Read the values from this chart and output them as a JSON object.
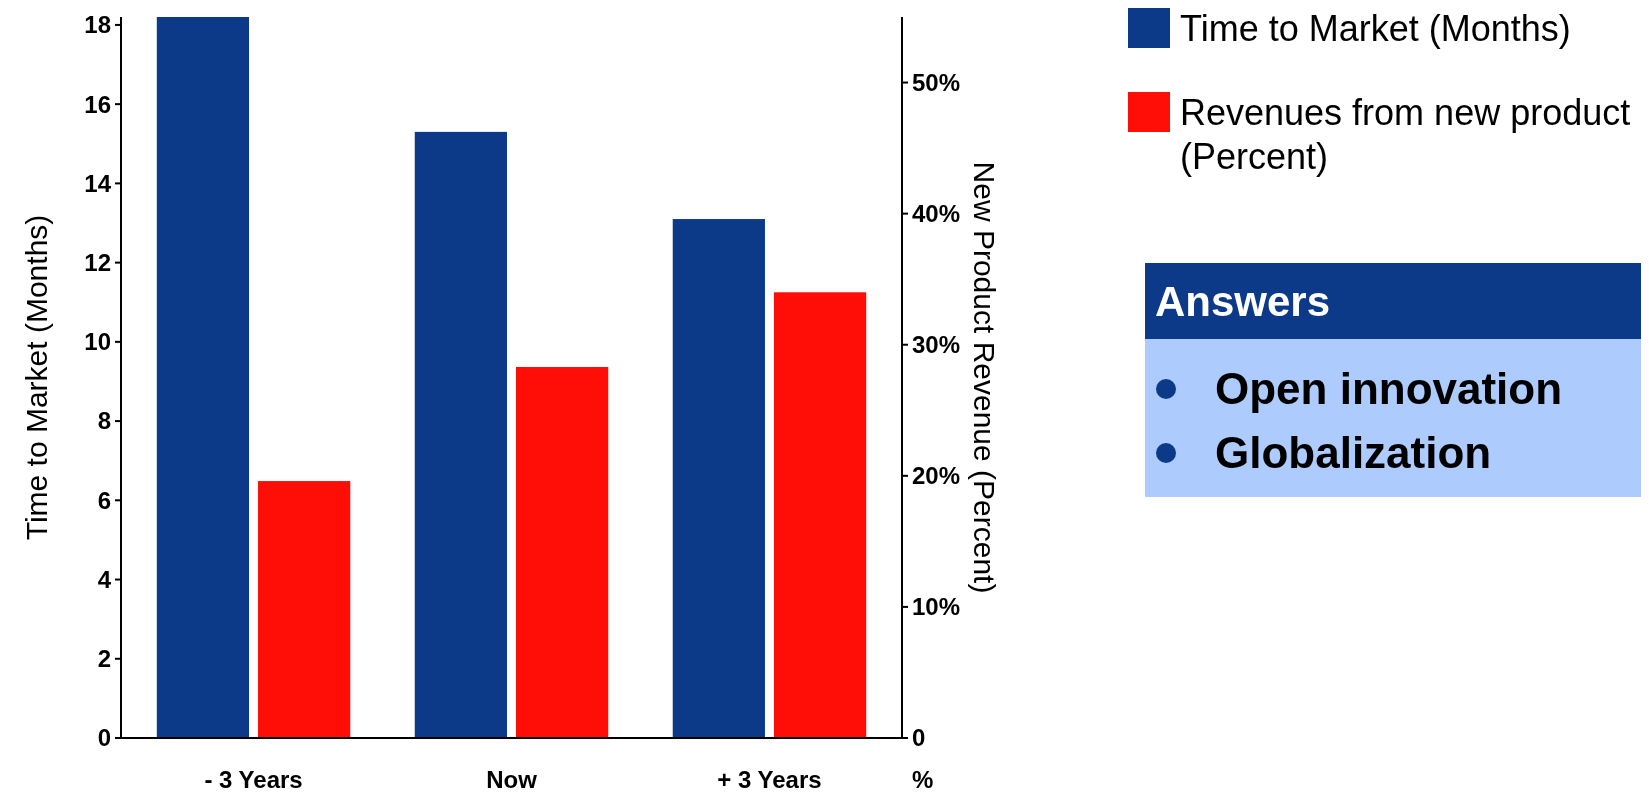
{
  "chart_data": [
    {
      "type": "bar",
      "ylabel": "Time to Market (Months)",
      "y2label": "New Product Revenue (Percent)",
      "categories": [
        "- 3 Years",
        "Now",
        "+ 3 Years"
      ],
      "series": [
        {
          "name": "Time to Market (Months)",
          "color": "#0c3a88",
          "values": [
            18.2,
            15.3,
            13.1
          ]
        },
        {
          "name": "Revenues from new product (Percent)",
          "color": "#ff0d07",
          "values": [
            19.6,
            28.3,
            34.0
          ],
          "axis": "y2"
        }
      ],
      "ylim": [
        0,
        18.2
      ],
      "yticks": [
        0,
        2,
        4,
        6,
        8,
        10,
        12,
        14,
        16,
        18
      ],
      "y2lim": [
        0,
        55
      ],
      "y2ticks": [
        0,
        {
          "value": 10,
          "label": "10%"
        },
        {
          "value": 20,
          "label": "20%"
        },
        {
          "value": 30,
          "label": "30%"
        },
        {
          "value": 40,
          "label": "40%"
        },
        {
          "value": 50,
          "label": "50%"
        }
      ],
      "annotations": [
        "%"
      ],
      "grid": false,
      "legend": "top right"
    },
    {
      "type": "other",
      "title": "Answers",
      "annotations": [
        "Open innovation",
        "Globalization"
      ]
    }
  ]
}
